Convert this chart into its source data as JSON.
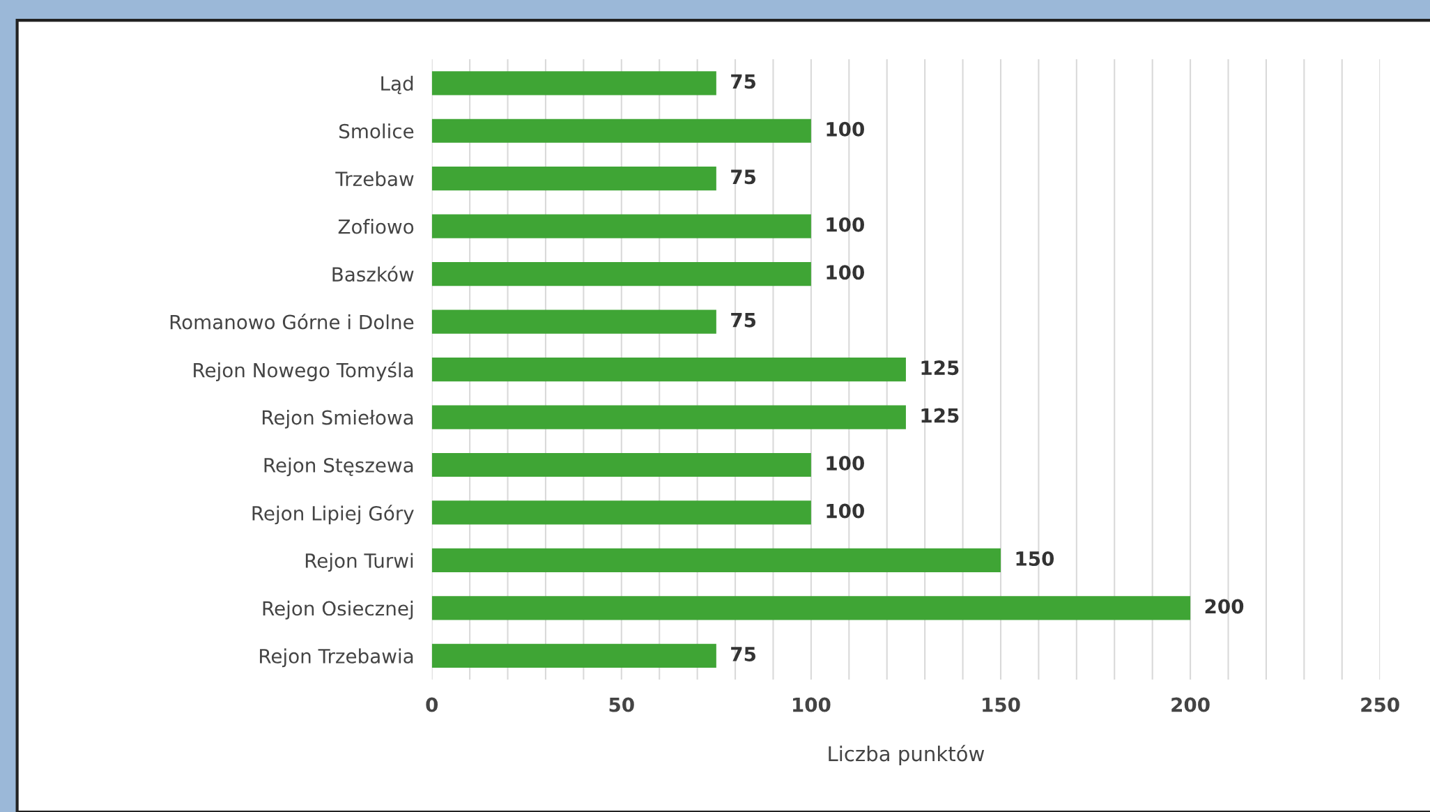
{
  "chart_data": {
    "type": "bar",
    "orientation": "horizontal",
    "xlabel": "Liczba punktów",
    "categories": [
      "Ląd",
      "Smolice",
      "Trzebaw",
      "Zofiowo",
      "Baszków",
      "Romanowo Górne i Dolne",
      "Rejon Nowego Tomyśla",
      "Rejon Smiełowa",
      "Rejon Stęszewa",
      "Rejon Lipiej Góry",
      "Rejon Turwi",
      "Rejon Osiecznej",
      "Rejon Trzebawia"
    ],
    "values": [
      75,
      100,
      75,
      100,
      100,
      75,
      125,
      125,
      100,
      100,
      150,
      200,
      75
    ],
    "color": "#3fa535",
    "data_labels": true,
    "grid": "x",
    "xlim": [
      0,
      250
    ],
    "xticks": [
      0,
      {
        "value": 10,
        "label": null
      },
      {
        "value": 20,
        "label": null
      },
      {
        "value": 30,
        "label": null
      },
      {
        "value": 40,
        "label": null
      },
      50,
      {
        "value": 60,
        "label": null
      },
      {
        "value": 70,
        "label": null
      },
      {
        "value": 80,
        "label": null
      },
      {
        "value": 90,
        "label": null
      },
      100,
      {
        "value": 110,
        "label": null
      },
      {
        "value": 120,
        "label": null
      },
      {
        "value": 130,
        "label": null
      },
      {
        "value": 140,
        "label": null
      },
      150,
      {
        "value": 160,
        "label": null
      },
      {
        "value": 170,
        "label": null
      },
      {
        "value": 180,
        "label": null
      },
      {
        "value": 190,
        "label": null
      },
      200,
      {
        "value": 210,
        "label": null
      },
      {
        "value": 220,
        "label": null
      },
      {
        "value": 230,
        "label": null
      },
      {
        "value": 240,
        "label": null
      },
      250
    ]
  }
}
